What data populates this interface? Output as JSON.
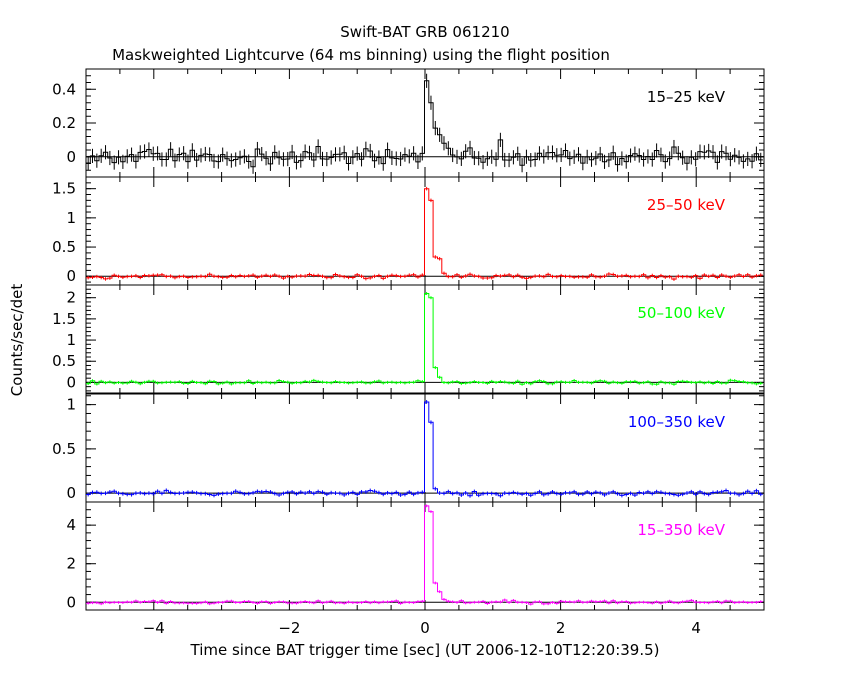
{
  "title": "Swift-BAT GRB 061210",
  "subtitle": "Maskweighted Lightcurve (64 ms binning) using the flight position",
  "xlabel": "Time since BAT trigger time [sec] (UT 2006-12-10T12:20:39.5)",
  "ylabel": "Counts/sec/det",
  "colors": {
    "axis": "#000000",
    "band_15_25": "#000000",
    "band_25_50": "#ff0000",
    "band_50_100": "#00ff00",
    "band_100_350": "#0000ff",
    "band_15_350": "#ff00ff"
  },
  "chart_data": {
    "type": "line",
    "binning_sec": 0.064,
    "xlim": [
      -5,
      5
    ],
    "x_ticks": [
      -4,
      -2,
      0,
      2,
      4
    ],
    "x_tick_labels": [
      "−4",
      "−2",
      "0",
      "2",
      "4"
    ],
    "panels": [
      {
        "name": "15–25 keV",
        "ylim": [
          -0.12,
          0.52
        ],
        "yticks": [
          0,
          0.2,
          0.4
        ],
        "ytick_labels": [
          "0",
          "0.2",
          "0.4"
        ],
        "noise": 0.035,
        "series": [
          {
            "x": -0.032,
            "y": 0.02
          },
          {
            "x": 0.032,
            "y": 0.45
          },
          {
            "x": 0.096,
            "y": 0.32
          },
          {
            "x": 0.16,
            "y": 0.17
          },
          {
            "x": 0.224,
            "y": 0.13
          },
          {
            "x": 0.288,
            "y": 0.08
          },
          {
            "x": 0.352,
            "y": 0.05
          },
          {
            "x": 1.1,
            "y": 0.1
          }
        ]
      },
      {
        "name": "25–50 keV",
        "ylim": [
          -0.15,
          1.7
        ],
        "yticks": [
          0,
          0.5,
          1,
          1.5
        ],
        "ytick_labels": [
          "0",
          "0.5",
          "1",
          "1.5"
        ],
        "noise": 0.025,
        "series": [
          {
            "x": -0.032,
            "y": 0.02
          },
          {
            "x": 0.032,
            "y": 1.5
          },
          {
            "x": 0.096,
            "y": 1.3
          },
          {
            "x": 0.16,
            "y": 0.33
          },
          {
            "x": 0.224,
            "y": 0.3
          },
          {
            "x": 0.288,
            "y": 0.05
          }
        ]
      },
      {
        "name": "50–100 keV",
        "ylim": [
          -0.25,
          2.3
        ],
        "yticks": [
          0,
          0.5,
          1,
          1.5,
          2
        ],
        "ytick_labels": [
          "0",
          "0.5",
          "1",
          "1.5",
          "2"
        ],
        "noise": 0.03,
        "series": [
          {
            "x": -0.032,
            "y": 0.02
          },
          {
            "x": 0.032,
            "y": 2.1
          },
          {
            "x": 0.096,
            "y": 2.0
          },
          {
            "x": 0.16,
            "y": 0.35
          },
          {
            "x": 0.224,
            "y": 0.12
          }
        ]
      },
      {
        "name": "100–350 keV",
        "ylim": [
          -0.1,
          1.12
        ],
        "yticks": [
          0,
          0.5,
          1
        ],
        "ytick_labels": [
          "0",
          "0.5",
          "1"
        ],
        "noise": 0.018,
        "series": [
          {
            "x": -0.032,
            "y": 0.01
          },
          {
            "x": 0.032,
            "y": 1.03
          },
          {
            "x": 0.096,
            "y": 0.8
          },
          {
            "x": 0.16,
            "y": 0.05
          }
        ]
      },
      {
        "name": "15–350 keV",
        "ylim": [
          -0.4,
          5.2
        ],
        "yticks": [
          0,
          2,
          4
        ],
        "ytick_labels": [
          "0",
          "2",
          "4"
        ],
        "noise": 0.06,
        "series": [
          {
            "x": -0.032,
            "y": 0.05
          },
          {
            "x": 0.032,
            "y": 5.0
          },
          {
            "x": 0.096,
            "y": 4.7
          },
          {
            "x": 0.16,
            "y": 1.0
          },
          {
            "x": 0.224,
            "y": 0.55
          },
          {
            "x": 0.288,
            "y": 0.15
          },
          {
            "x": 1.2,
            "y": 0.12
          }
        ]
      }
    ]
  }
}
